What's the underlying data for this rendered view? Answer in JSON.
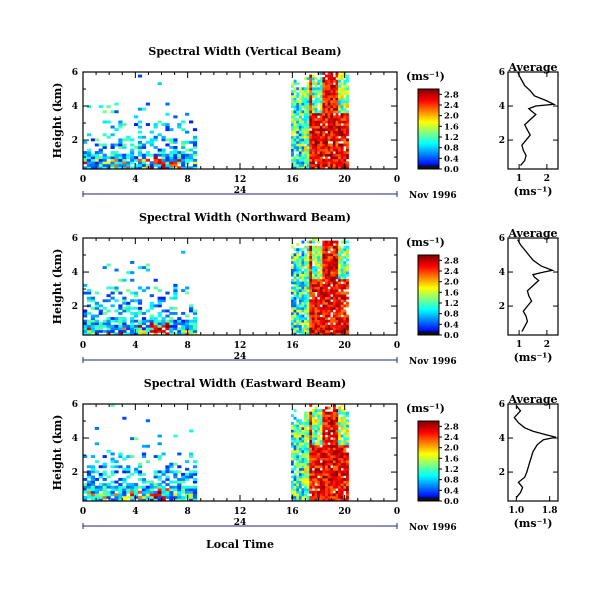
{
  "figure": {
    "xlabel": "Local Time",
    "date_label": "Nov 1996",
    "date_marker": "24",
    "colorbar_unit": "(ms⁻¹)",
    "avg_title": "Average",
    "avg_xlabel": "(ms⁻¹)"
  },
  "chart_data": [
    {
      "type": "heatmap",
      "title": "Spectral Width (Vertical Beam)",
      "ylabel": "Height (km)",
      "xlabel": "",
      "x_ticks": [
        "0",
        "4",
        "8",
        "12",
        "16",
        "20",
        "0"
      ],
      "y_ticks": [
        "2",
        "4",
        "6"
      ],
      "xlim": [
        0,
        24
      ],
      "ylim": [
        0.3,
        6
      ],
      "data_periods_hours": [
        [
          0,
          8.6
        ],
        [
          15.9,
          20.1
        ]
      ],
      "colorbar": {
        "label": "(ms⁻¹)",
        "ticks": [
          "0.0",
          "0.4",
          "0.8",
          "1.2",
          "1.6",
          "2.0",
          "2.4",
          "2.8"
        ],
        "range": [
          0,
          3.0
        ]
      }
    },
    {
      "type": "line",
      "title": "Average",
      "xlabel": "(ms⁻¹)",
      "ylabel": "",
      "x_ticks": [
        "1",
        "2"
      ],
      "y_ticks": [
        "2",
        "4",
        "6"
      ],
      "xlim": [
        0.6,
        2.4
      ],
      "ylim": [
        0.3,
        6
      ],
      "x": [
        1.05,
        1.2,
        1.25,
        1.15,
        1.1,
        1.25,
        1.4,
        1.3,
        1.2,
        1.4,
        1.6,
        1.45,
        1.35,
        1.6,
        2.25,
        2.0,
        1.55,
        1.4,
        1.2,
        1.1,
        1.0,
        0.95
      ],
      "y": [
        0.5,
        0.8,
        1.1,
        1.4,
        1.7,
        2.0,
        2.3,
        2.6,
        2.9,
        3.2,
        3.5,
        3.7,
        3.85,
        4.0,
        4.1,
        4.3,
        4.6,
        4.9,
        5.2,
        5.5,
        5.8,
        6.0
      ]
    },
    {
      "type": "heatmap",
      "title": "Spectral Width (Northward Beam)",
      "ylabel": "Height (km)",
      "xlabel": "",
      "x_ticks": [
        "0",
        "4",
        "8",
        "12",
        "16",
        "20",
        "0"
      ],
      "y_ticks": [
        "2",
        "4",
        "6"
      ],
      "xlim": [
        0,
        24
      ],
      "ylim": [
        0.3,
        6
      ],
      "data_periods_hours": [
        [
          0,
          8.6
        ],
        [
          15.9,
          20.1
        ]
      ],
      "colorbar": {
        "label": "(ms⁻¹)",
        "ticks": [
          "0.0",
          "0.4",
          "0.8",
          "1.2",
          "1.6",
          "2.0",
          "2.4",
          "2.8"
        ],
        "range": [
          0,
          3.0
        ]
      }
    },
    {
      "type": "line",
      "title": "Average",
      "xlabel": "(ms⁻¹)",
      "ylabel": "",
      "x_ticks": [
        "1",
        "2"
      ],
      "y_ticks": [
        "2",
        "4",
        "6"
      ],
      "xlim": [
        0.6,
        2.4
      ],
      "ylim": [
        0.3,
        6
      ],
      "x": [
        1.1,
        1.2,
        1.3,
        1.25,
        1.15,
        1.3,
        1.45,
        1.35,
        1.3,
        1.5,
        1.7,
        1.55,
        1.5,
        1.9,
        2.2,
        1.8,
        1.5,
        1.35,
        1.2,
        1.05,
        0.95
      ],
      "y": [
        0.5,
        0.8,
        1.1,
        1.4,
        1.7,
        2.0,
        2.3,
        2.6,
        2.9,
        3.2,
        3.5,
        3.7,
        3.85,
        4.0,
        4.1,
        4.35,
        4.7,
        5.0,
        5.3,
        5.6,
        5.9
      ]
    },
    {
      "type": "heatmap",
      "title": "Spectral Width (Eastward Beam)",
      "ylabel": "Height (km)",
      "xlabel": "Local Time",
      "x_ticks": [
        "0",
        "4",
        "8",
        "12",
        "16",
        "20",
        "0"
      ],
      "y_ticks": [
        "2",
        "4",
        "6"
      ],
      "xlim": [
        0,
        24
      ],
      "ylim": [
        0.3,
        6
      ],
      "data_periods_hours": [
        [
          0,
          8.6
        ],
        [
          15.9,
          20.1
        ]
      ],
      "colorbar": {
        "label": "(ms⁻¹)",
        "ticks": [
          "0.0",
          "0.4",
          "0.8",
          "1.2",
          "1.6",
          "2.0",
          "2.4",
          "2.8"
        ],
        "range": [
          0,
          3.0
        ]
      }
    },
    {
      "type": "line",
      "title": "Average",
      "xlabel": "(ms⁻¹)",
      "ylabel": "",
      "x_ticks": [
        "1.0",
        "1.8"
      ],
      "y_ticks": [
        "2",
        "4",
        "6"
      ],
      "xlim": [
        0.8,
        2.0
      ],
      "ylim": [
        0.3,
        6
      ],
      "x": [
        1.0,
        1.1,
        1.15,
        1.05,
        1.2,
        1.25,
        1.3,
        1.35,
        1.4,
        1.5,
        1.65,
        1.95,
        1.7,
        1.4,
        1.2,
        1.05,
        0.95,
        1.1,
        1.0
      ],
      "y": [
        0.5,
        0.8,
        1.1,
        1.4,
        1.7,
        2.0,
        2.4,
        2.8,
        3.2,
        3.6,
        3.9,
        4.05,
        4.2,
        4.4,
        4.6,
        4.9,
        5.2,
        5.6,
        5.9
      ]
    }
  ]
}
